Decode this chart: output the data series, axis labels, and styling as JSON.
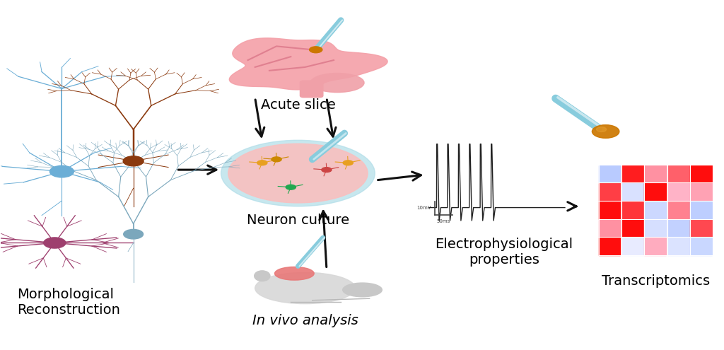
{
  "background_color": "#ffffff",
  "labels": {
    "acute_slice": "Acute slice",
    "neuron_culture": "Neuron culture",
    "in_vivo": "In vivo analysis",
    "electrophysiology": "Electrophysiological\nproperties",
    "transcriptomics": "Transcriptomics",
    "morphological": "Morphological\nReconstruction"
  },
  "label_fontsize": 14,
  "neuron_colors": {
    "blue": "#6baed6",
    "brown": "#8B3A0F",
    "mauve": "#9e3f6e",
    "gray_blue": "#7ba7bc"
  },
  "arrow_color": "#111111",
  "dish_fill": "#f8c0c0",
  "dish_edge": "#b0dde8",
  "brain_fill": "#f4a0a8",
  "pipette_fill": "#aaddee",
  "heatmap_matrix": [
    [
      0.05,
      0.95,
      0.6,
      0.75,
      1.0
    ],
    [
      0.85,
      0.3,
      1.0,
      0.5,
      0.55
    ],
    [
      1.0,
      0.88,
      0.2,
      0.65,
      0.08
    ],
    [
      0.6,
      1.0,
      0.28,
      0.12,
      0.82
    ],
    [
      1.0,
      0.42,
      0.52,
      0.32,
      0.18
    ]
  ]
}
